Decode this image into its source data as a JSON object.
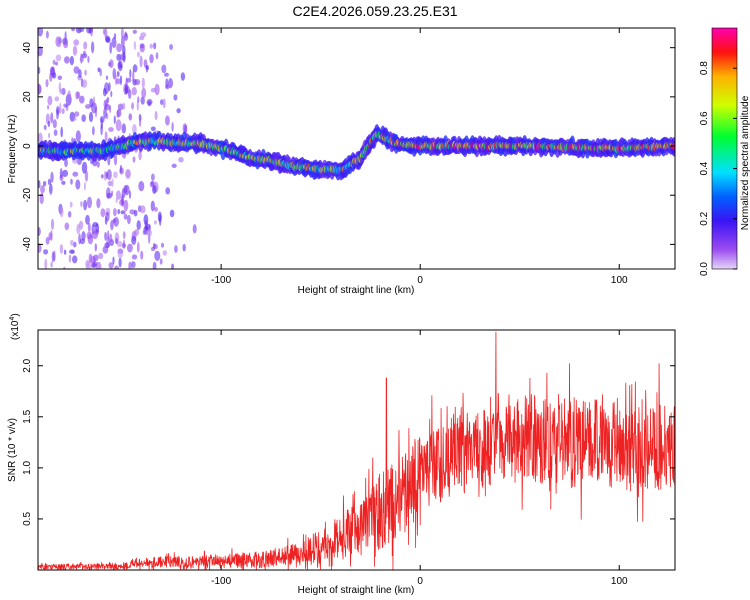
{
  "title": "C2E4.2026.059.23.25.E31",
  "colors": {
    "snr_line": "#ee2222",
    "axis": "#000000",
    "spectrogram_background": "#ffffff"
  },
  "chart_data": [
    {
      "type": "heatmap",
      "name": "spectrogram",
      "xlabel": "Height of straight line (km)",
      "ylabel": "Frequency (Hz)",
      "xlim": [
        -192,
        128
      ],
      "ylim": [
        -50,
        48
      ],
      "x_ticks": [
        -100,
        0,
        100
      ],
      "x_tick_labels": [
        "-100",
        "0",
        "100"
      ],
      "y_ticks": [
        -40,
        -20,
        0,
        20,
        40
      ],
      "y_tick_labels": [
        "-40",
        "-20",
        "0",
        "20",
        "40"
      ],
      "ridge": [
        {
          "x": -192,
          "freq": -2
        },
        {
          "x": -160,
          "freq": -2
        },
        {
          "x": -140,
          "freq": 2
        },
        {
          "x": -110,
          "freq": 1
        },
        {
          "x": -95,
          "freq": -2
        },
        {
          "x": -85,
          "freq": -5
        },
        {
          "x": -75,
          "freq": -6
        },
        {
          "x": -65,
          "freq": -8
        },
        {
          "x": -55,
          "freq": -9
        },
        {
          "x": -40,
          "freq": -10
        },
        {
          "x": -30,
          "freq": -5
        },
        {
          "x": -22,
          "freq": 5
        },
        {
          "x": -12,
          "freq": 1
        },
        {
          "x": 0,
          "freq": 0
        },
        {
          "x": 50,
          "freq": 0
        },
        {
          "x": 100,
          "freq": -1
        },
        {
          "x": 128,
          "freq": 0
        }
      ],
      "colorbar": {
        "label": "Normalized spectral amplitude",
        "range": [
          0,
          0.96
        ],
        "ticks": [
          0.0,
          0.2,
          0.4,
          0.6,
          0.8
        ],
        "tick_labels": [
          "0.0",
          "0.2",
          "0.4",
          "0.6",
          "0.8"
        ]
      }
    },
    {
      "type": "line",
      "name": "snr",
      "xlabel": "Height of straight line (km)",
      "ylabel": "SNR (10 * v/v)",
      "y_multiplier_label": "(x10",
      "y_multiplier_exponent": "4",
      "y_multiplier_close": ")",
      "xlim": [
        -192,
        128
      ],
      "ylim": [
        0,
        2.35
      ],
      "x_ticks": [
        -100,
        0,
        100
      ],
      "x_tick_labels": [
        "-100",
        "0",
        "100"
      ],
      "y_ticks": [
        0.5,
        1.0,
        1.5,
        2.0
      ],
      "y_tick_labels": [
        "0.5",
        "1.0",
        "1.5",
        "2.0"
      ],
      "envelope": [
        {
          "x": -192,
          "mean": 0.03,
          "spread": 0.03
        },
        {
          "x": -150,
          "mean": 0.04,
          "spread": 0.04
        },
        {
          "x": -138,
          "mean": 0.08,
          "spread": 0.06
        },
        {
          "x": -110,
          "mean": 0.08,
          "spread": 0.08
        },
        {
          "x": -80,
          "mean": 0.1,
          "spread": 0.1
        },
        {
          "x": -60,
          "mean": 0.17,
          "spread": 0.13
        },
        {
          "x": -45,
          "mean": 0.3,
          "spread": 0.22
        },
        {
          "x": -30,
          "mean": 0.4,
          "spread": 0.35
        },
        {
          "x": -20,
          "mean": 0.55,
          "spread": 0.55
        },
        {
          "x": -10,
          "mean": 0.7,
          "spread": 0.5
        },
        {
          "x": 0,
          "mean": 0.95,
          "spread": 0.5
        },
        {
          "x": 10,
          "mean": 1.05,
          "spread": 0.5
        },
        {
          "x": 40,
          "mean": 1.3,
          "spread": 0.55
        },
        {
          "x": 80,
          "mean": 1.25,
          "spread": 0.55
        },
        {
          "x": 110,
          "mean": 1.2,
          "spread": 0.55
        },
        {
          "x": 128,
          "mean": 1.2,
          "spread": 0.5
        }
      ],
      "notable_peaks": [
        {
          "x": -17,
          "y": 1.88
        },
        {
          "x": 38,
          "y": 2.33
        },
        {
          "x": 75,
          "y": 2.02
        },
        {
          "x": 120,
          "y": 2.02
        }
      ]
    }
  ]
}
